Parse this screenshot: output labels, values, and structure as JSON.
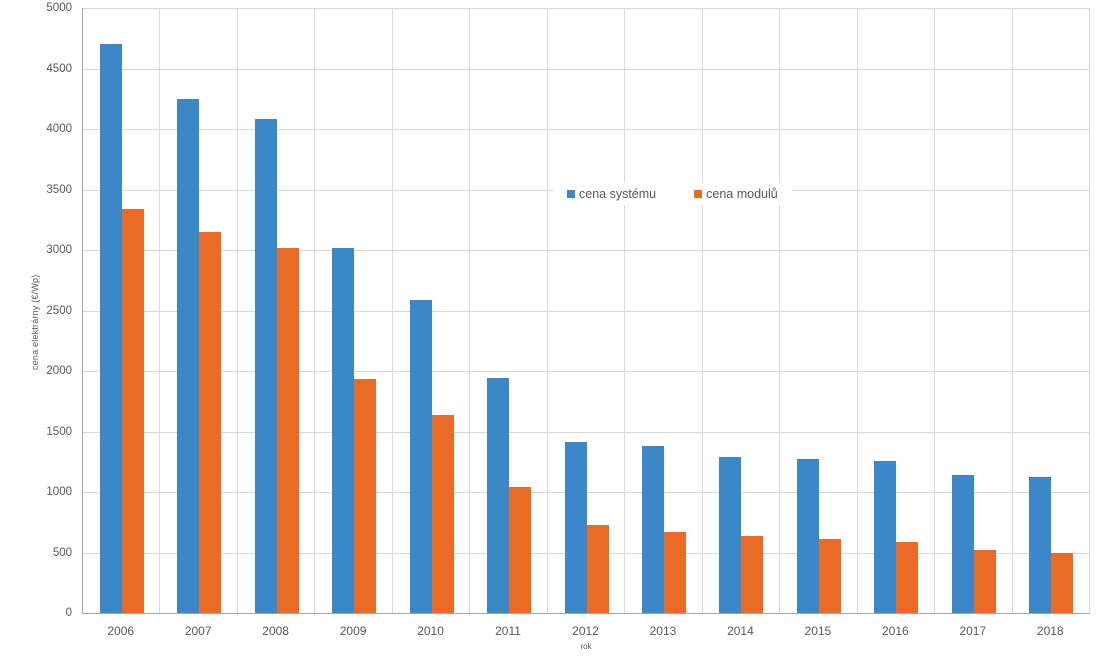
{
  "chart_data": {
    "type": "bar",
    "title": "",
    "xlabel": "rok",
    "ylabel": "cena elektrárny (€/Wp)",
    "categories": [
      "2006",
      "2007",
      "2008",
      "2009",
      "2010",
      "2011",
      "2012",
      "2013",
      "2014",
      "2015",
      "2016",
      "2017",
      "2018"
    ],
    "series": [
      {
        "name": "cena systému",
        "key": "system",
        "color": "#3B87C8",
        "values": [
          4700,
          4250,
          4080,
          3020,
          2590,
          1940,
          1410,
          1380,
          1290,
          1270,
          1260,
          1140,
          1120
        ]
      },
      {
        "name": "cena modulů",
        "key": "modules",
        "color": "#EA6B25",
        "values": [
          3340,
          3150,
          3020,
          1930,
          1640,
          1040,
          730,
          670,
          635,
          610,
          590,
          520,
          500
        ]
      }
    ],
    "ylim": [
      0,
      5000
    ],
    "yticks": [
      0,
      500,
      1000,
      1500,
      2000,
      2500,
      3000,
      3500,
      4000,
      4500,
      5000
    ],
    "grid": true,
    "legend_position": "inside-top-center"
  },
  "colors": {
    "gridline": "#D9D9D9",
    "axis_line": "#A6A6A6",
    "tick_text": "#595959",
    "background": "#FFFFFF"
  }
}
